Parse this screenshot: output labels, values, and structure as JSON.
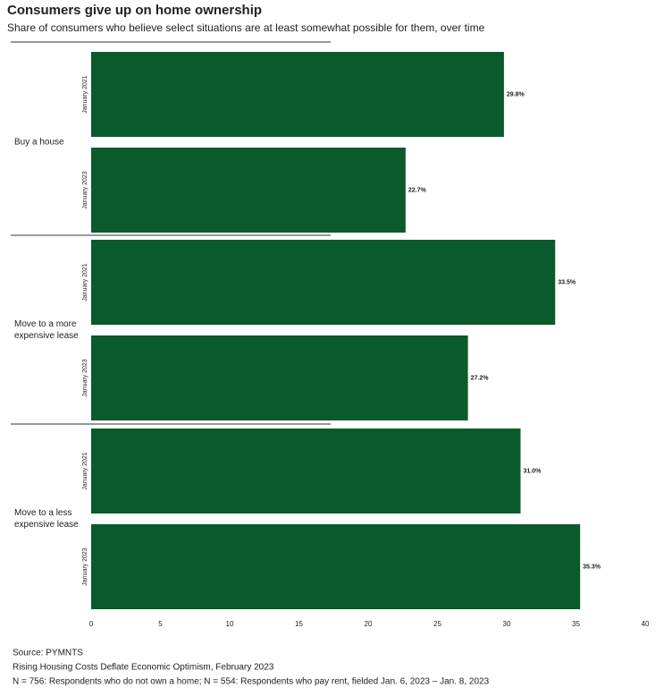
{
  "chart_data": {
    "type": "bar",
    "orientation": "horizontal",
    "title": "Consumers give up on home ownership",
    "subtitle": "Share of consumers who believe select situations are at least somewhat possible for them, over time",
    "categories": [
      "Buy a house",
      "Move to a more expensive lease",
      "Move to a less expensive lease"
    ],
    "series": [
      {
        "name": "January 2021",
        "color": "#0b5a2b",
        "values": [
          29.8,
          33.5,
          31.0
        ],
        "value_labels": [
          "29.8%",
          "33.5%",
          "31.0%"
        ]
      },
      {
        "name": "January 2023",
        "color": "#0b5a2b",
        "values": [
          22.7,
          27.2,
          35.3
        ],
        "value_labels": [
          "22.7%",
          "27.2%",
          "35.3%"
        ]
      }
    ],
    "xlim": [
      0,
      40
    ],
    "xticks": [
      0,
      5,
      10,
      15,
      20,
      25,
      30,
      35,
      40
    ],
    "notes": [
      "Source: PYMNTS",
      "Rising Housing Costs Deflate Economic Optimism, February 2023",
      "N = 756: Respondents who do not own a home; N = 554: Respondents who pay rent, fielded Jan. 6, 2023 – Jan. 8, 2023"
    ]
  }
}
